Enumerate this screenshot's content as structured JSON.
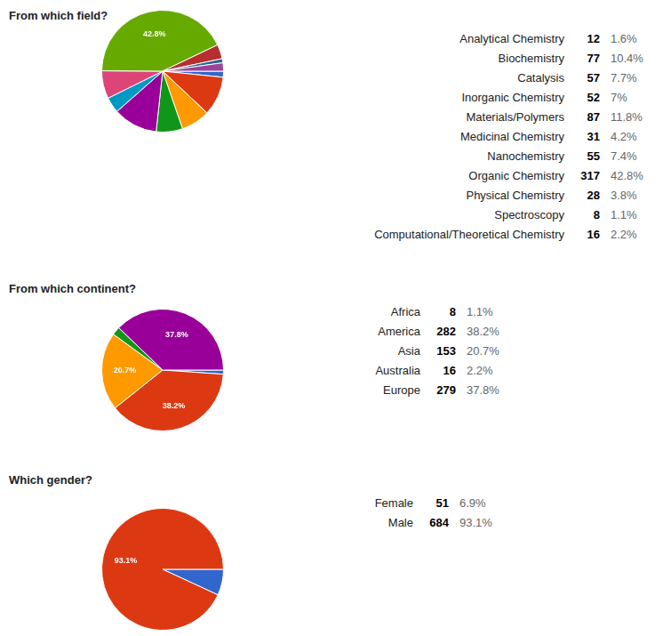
{
  "chart_data": [
    {
      "type": "pie",
      "title": "From which field?",
      "categories": [
        "Analytical Chemistry",
        "Biochemistry",
        "Catalysis",
        "Inorganic Chemistry",
        "Materials/Polymers",
        "Medicinal Chemistry",
        "Nanochemistry",
        "Organic Chemistry",
        "Physical Chemistry",
        "Spectroscopy",
        "Computational/Theoretical Chemistry"
      ],
      "values": [
        1.6,
        10.4,
        7.7,
        7,
        11.8,
        4.2,
        7.4,
        42.8,
        3.8,
        1.1,
        2.2
      ],
      "value_labels": [
        "1.6%",
        "10.4%",
        "7.7%",
        "7%",
        "11.8%",
        "4.2%",
        "7.4%",
        "42.8%",
        "3.8%",
        "1.1%",
        "2.2%"
      ],
      "counts": [
        12,
        77,
        57,
        52,
        87,
        31,
        55,
        317,
        28,
        8,
        16
      ],
      "colors": [
        "#3366cc",
        "#dc3912",
        "#ff9900",
        "#109618",
        "#990099",
        "#0099c6",
        "#dd4477",
        "#66aa00",
        "#b82e2e",
        "#316395",
        "#994499"
      ],
      "data_labels": true
    },
    {
      "type": "pie",
      "title": "From which continent?",
      "categories": [
        "Africa",
        "America",
        "Asia",
        "Australia",
        "Europe"
      ],
      "values": [
        1.1,
        38.2,
        20.7,
        2.2,
        37.8
      ],
      "value_labels": [
        "1.1%",
        "38.2%",
        "20.7%",
        "2.2%",
        "37.8%"
      ],
      "counts": [
        8,
        282,
        153,
        16,
        279
      ],
      "colors": [
        "#3366cc",
        "#dc3912",
        "#ff9900",
        "#109618",
        "#990099"
      ],
      "data_labels": true
    },
    {
      "type": "pie",
      "title": "Which gender?",
      "categories": [
        "Female",
        "Male"
      ],
      "values": [
        6.9,
        93.1
      ],
      "value_labels": [
        "6.9%",
        "93.1%"
      ],
      "counts": [
        51,
        684
      ],
      "colors": [
        "#3366cc",
        "#dc3912"
      ],
      "data_labels": true
    }
  ]
}
